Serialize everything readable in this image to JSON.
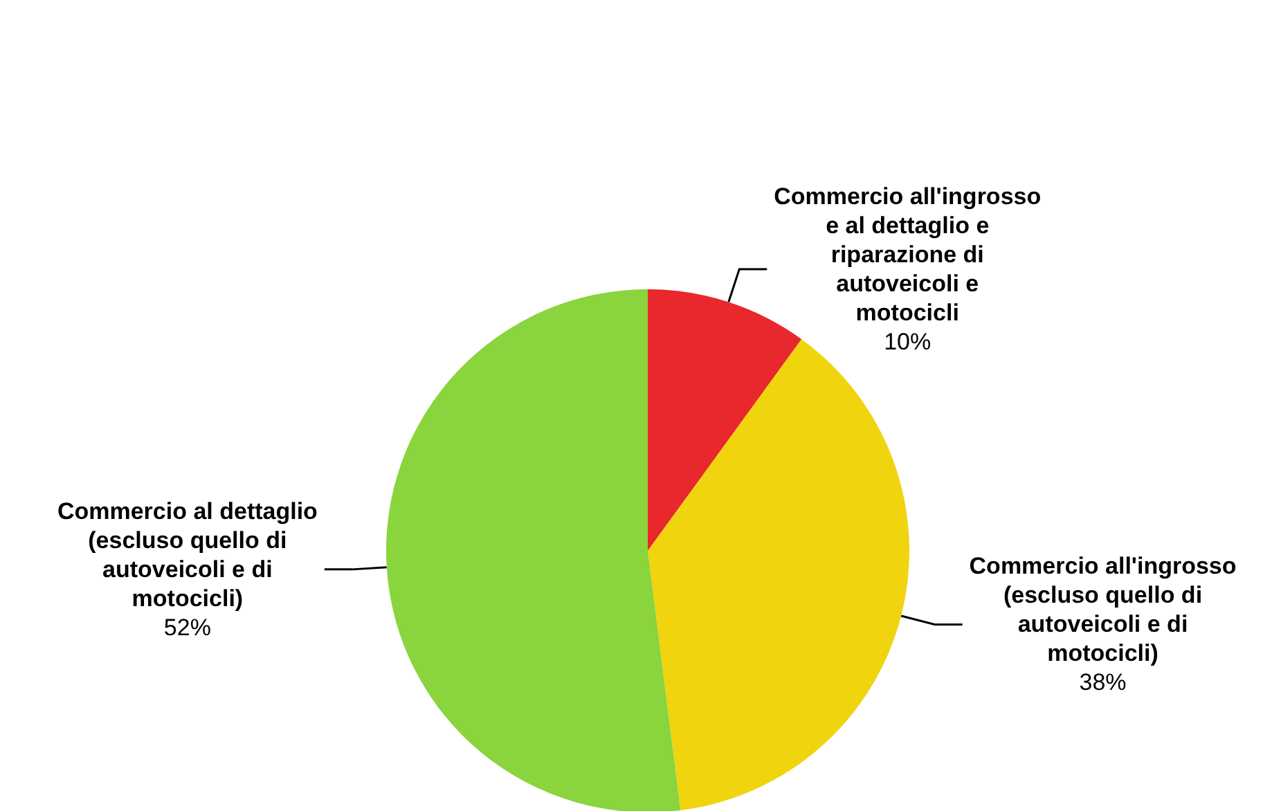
{
  "chart_data": {
    "type": "pie",
    "categories": [
      "Commercio all'ingrosso e al dettaglio e riparazione di autoveicoli e motocicli",
      "Commercio all'ingrosso (escluso quello di autoveicoli e di motocicli)",
      "Commercio al dettaglio (escluso quello di autoveicoli e di motocicli)"
    ],
    "values": [
      10,
      38,
      52
    ],
    "value_labels": [
      "10%",
      "38%",
      "52%"
    ],
    "colors": [
      "#e8282c",
      "#f0d40e",
      "#8ad43e"
    ],
    "legend": false
  }
}
